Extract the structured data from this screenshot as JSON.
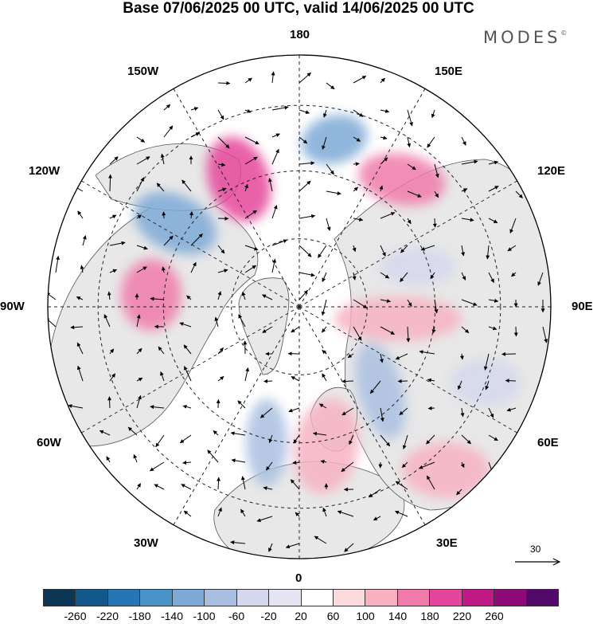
{
  "header": {
    "title": "Base 07/06/2025 00 UTC, valid 14/06/2025 00 UTC",
    "brand": "MODES",
    "brand_mark": "©"
  },
  "map": {
    "projection": "north-polar-stereographic",
    "lon_labels": [
      "180",
      "150E",
      "120E",
      "90E",
      "60E",
      "30E",
      "0",
      "30W",
      "60W",
      "90W",
      "120W",
      "150W"
    ],
    "reference_vector_label": "30",
    "colors": {
      "land": "#e8e8e8",
      "coast": "#555555",
      "grid": "#222222",
      "ocean": "#ffffff"
    },
    "anomalies": [
      {
        "id": "positive-1",
        "value": 180
      },
      {
        "id": "positive-2",
        "value": 140
      },
      {
        "id": "positive-3",
        "value": 100
      },
      {
        "id": "negative-1",
        "value": -140
      },
      {
        "id": "negative-2",
        "value": -100
      },
      {
        "id": "negative-3",
        "value": -60
      }
    ]
  },
  "colorbar": {
    "tick_labels": [
      "-260",
      "-220",
      "-180",
      "-140",
      "-100",
      "-60",
      "-20",
      "20",
      "60",
      "100",
      "140",
      "180",
      "220",
      "260"
    ],
    "colors": [
      "#0b3755",
      "#12588a",
      "#2576b3",
      "#4a93c8",
      "#7da9d6",
      "#a9bfe0",
      "#d5d8ec",
      "#e6e6f2",
      "#ffffff",
      "#fbd9dd",
      "#f7b1c1",
      "#f07aa9",
      "#e5459a",
      "#c01a86",
      "#8c0b79",
      "#520a6a"
    ]
  }
}
